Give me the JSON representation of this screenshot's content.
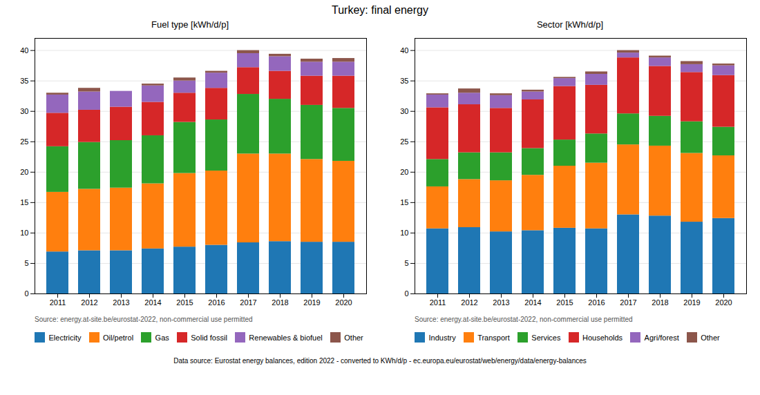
{
  "title": "Turkey: final energy",
  "caption": "Data source: Eurostat energy balances, edition 2022 - converted to KWh/d/p - ec.europa.eu/eurostat/web/energy/data/energy-balances",
  "chart_data": [
    {
      "type": "bar",
      "stacked": true,
      "title": "Fuel type [kWh/d/p]",
      "annotations": [
        "Source: energy.at-site.be/eurostat-2022, non-commercial use permitted"
      ],
      "categories": [
        "2011",
        "2012",
        "2013",
        "2014",
        "2015",
        "2016",
        "2017",
        "2018",
        "2019",
        "2020"
      ],
      "series": [
        {
          "name": "Electricity",
          "color": "#1f77b4",
          "values": [
            6.9,
            7.1,
            7.1,
            7.4,
            7.7,
            8.0,
            8.4,
            8.6,
            8.5,
            8.5
          ]
        },
        {
          "name": "Oil/petrol",
          "color": "#ff7f0e",
          "values": [
            9.8,
            10.1,
            10.3,
            10.7,
            12.1,
            12.2,
            14.6,
            14.4,
            13.6,
            13.3
          ]
        },
        {
          "name": "Gas",
          "color": "#2ca02c",
          "values": [
            7.5,
            7.7,
            7.8,
            7.9,
            8.4,
            8.4,
            9.8,
            9.0,
            8.9,
            8.7
          ]
        },
        {
          "name": "Solid fossil",
          "color": "#d62728",
          "values": [
            5.5,
            5.3,
            5.5,
            5.5,
            4.8,
            5.2,
            4.4,
            4.6,
            4.8,
            5.3
          ]
        },
        {
          "name": "Renewables & biofuel",
          "color": "#9467bd",
          "values": [
            3.0,
            3.0,
            2.6,
            2.7,
            2.0,
            2.5,
            2.3,
            2.4,
            2.3,
            2.3
          ]
        },
        {
          "name": "Other",
          "color": "#8c564b",
          "values": [
            0.3,
            0.6,
            0.0,
            0.3,
            0.5,
            0.3,
            0.5,
            0.4,
            0.5,
            0.6
          ]
        }
      ],
      "ylim": [
        0,
        42
      ],
      "yticks": [
        0,
        5,
        10,
        15,
        20,
        25,
        30,
        35,
        40
      ],
      "grid": true,
      "legend": "bottom"
    },
    {
      "type": "bar",
      "stacked": true,
      "title": "Sector [kWh/d/p]",
      "annotations": [
        "Source: energy.at-site.be/eurostat-2022, non-commercial use permitted"
      ],
      "categories": [
        "2011",
        "2012",
        "2013",
        "2014",
        "2015",
        "2016",
        "2017",
        "2018",
        "2019",
        "2020"
      ],
      "series": [
        {
          "name": "Industry",
          "color": "#1f77b4",
          "values": [
            10.7,
            10.9,
            10.2,
            10.4,
            10.8,
            10.7,
            13.0,
            12.8,
            11.8,
            12.4
          ]
        },
        {
          "name": "Transport",
          "color": "#ff7f0e",
          "values": [
            6.9,
            7.9,
            8.4,
            9.1,
            10.2,
            10.8,
            11.5,
            11.5,
            11.3,
            10.3
          ]
        },
        {
          "name": "Services",
          "color": "#2ca02c",
          "values": [
            4.5,
            4.4,
            4.6,
            4.4,
            4.3,
            4.8,
            5.1,
            4.9,
            5.2,
            4.7
          ]
        },
        {
          "name": "Households",
          "color": "#d62728",
          "values": [
            8.5,
            7.9,
            7.3,
            8.0,
            8.8,
            8.0,
            9.2,
            8.2,
            8.1,
            8.5
          ]
        },
        {
          "name": "Agri/forest",
          "color": "#9467bd",
          "values": [
            2.1,
            1.9,
            2.1,
            1.3,
            1.3,
            1.8,
            0.8,
            1.4,
            1.3,
            1.6
          ]
        },
        {
          "name": "Other",
          "color": "#8c564b",
          "values": [
            0.2,
            0.7,
            0.3,
            0.3,
            0.2,
            0.4,
            0.4,
            0.3,
            0.5,
            0.3
          ]
        }
      ],
      "ylim": [
        0,
        42
      ],
      "yticks": [
        0,
        5,
        10,
        15,
        20,
        25,
        30,
        35,
        40
      ],
      "grid": true,
      "legend": "bottom"
    }
  ]
}
